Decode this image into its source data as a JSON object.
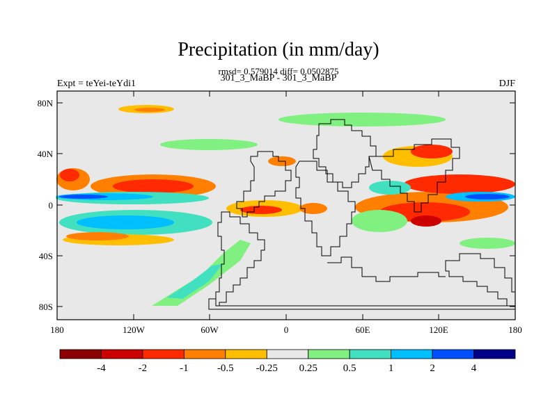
{
  "header": {
    "title": "Precipitation (in mm/day)",
    "stats": "rmsd= 0.579014 diff= 0.0502875",
    "case": "301_3_MaBP - 301_3_MaBP",
    "expt": "Expt = teYei-teYdi1",
    "season": "DJF"
  },
  "map": {
    "lat_ticks": [
      "80N",
      "40N",
      "0",
      "40S",
      "80S"
    ],
    "lon_ticks": [
      "180",
      "120W",
      "60W",
      "0",
      "60E",
      "120E",
      "180"
    ],
    "background_color": "#e8e8e8"
  },
  "colorbar": {
    "colors": [
      "#8b0000",
      "#cc0000",
      "#ff2a00",
      "#ff7f00",
      "#ffbf00",
      "#e8e8e8",
      "#80f080",
      "#40e0c0",
      "#00bfff",
      "#0050ff",
      "#00008b"
    ],
    "labels": [
      "-4",
      "-2",
      "-1",
      "-0.5",
      "-0.25",
      "0.25",
      "0.5",
      "1",
      "2",
      "4"
    ]
  }
}
